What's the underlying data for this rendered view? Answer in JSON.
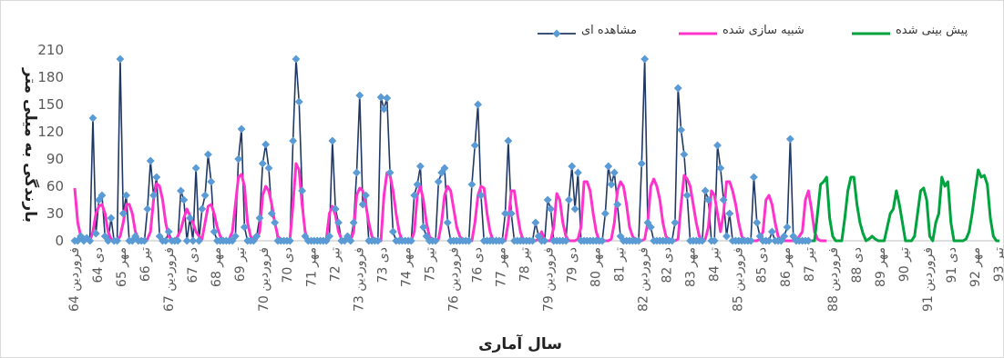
{
  "chart_data": {
    "type": "line",
    "xlabel": "سال آماری",
    "ylabel": "بارندگی به میلی متر",
    "ylim": [
      0,
      210
    ],
    "yticks": [
      0,
      30,
      60,
      90,
      120,
      150,
      180,
      210
    ],
    "grid": false,
    "legend_position": "top-right",
    "x_tick_labels": [
      "فروردین 64",
      "دی 64",
      "مهر 65",
      "تیر 66",
      "فروردین 67",
      "دی 67",
      "مهر 68",
      "تیر 69",
      "فروردین 70",
      "دی 70",
      "مهر 71",
      "تیر 72",
      "فروردین 73",
      "دی 73",
      "مهر 74",
      "تیر 75",
      "فروردین 76",
      "دی 76",
      "مهر 77",
      "تیر 78",
      "فروردین 79",
      "دی 79",
      "مهر 80",
      "تیر 81",
      "فروردین 82",
      "دی 82",
      "مهر 83",
      "تیر 84",
      "فروردین 85",
      "دی 85",
      "مهر 86",
      "تیر 87",
      "فروردین 88",
      "دی 88",
      "مهر 89",
      "تیر 90",
      "فروردین 91",
      "دی 91",
      "مهر 92",
      "تیر 93"
    ],
    "series": [
      {
        "name": "مشاهده ای",
        "color": "#1f3864",
        "marker_color": "#5b9bd5",
        "values": [
          0,
          0,
          5,
          0,
          3,
          0,
          135,
          8,
          45,
          50,
          5,
          0,
          25,
          0,
          0,
          200,
          30,
          50,
          0,
          0,
          5,
          0,
          0,
          0,
          35,
          88,
          50,
          70,
          5,
          0,
          0,
          10,
          0,
          0,
          0,
          55,
          45,
          0,
          25,
          0,
          80,
          0,
          35,
          50,
          95,
          65,
          10,
          0,
          0,
          0,
          0,
          0,
          0,
          5,
          90,
          123,
          15,
          0,
          0,
          0,
          5,
          25,
          85,
          106,
          80,
          30,
          20,
          0,
          0,
          0,
          0,
          0,
          110,
          200,
          153,
          55,
          5,
          0,
          0,
          0,
          0,
          0,
          0,
          0,
          5,
          110,
          35,
          20,
          0,
          0,
          5,
          0,
          20,
          75,
          160,
          40,
          50,
          0,
          0,
          0,
          0,
          158,
          145,
          157,
          75,
          10,
          0,
          0,
          0,
          0,
          0,
          0,
          50,
          62,
          82,
          15,
          5,
          0,
          0,
          0,
          65,
          75,
          80,
          20,
          0,
          0,
          0,
          0,
          0,
          0,
          0,
          62,
          105,
          150,
          50,
          0,
          0,
          0,
          0,
          0,
          0,
          0,
          30,
          110,
          30,
          0,
          0,
          0,
          0,
          0,
          0,
          0,
          20,
          5,
          0,
          0,
          45,
          35,
          0,
          0,
          0,
          0,
          0,
          45,
          82,
          35,
          75,
          0,
          0,
          0,
          0,
          0,
          0,
          0,
          0,
          30,
          82,
          62,
          75,
          40,
          5,
          0,
          0,
          0,
          0,
          0,
          0,
          85,
          200,
          20,
          15,
          0,
          0,
          0,
          0,
          0,
          0,
          0,
          20,
          168,
          122,
          95,
          50,
          0,
          0,
          0,
          0,
          0,
          55,
          45,
          0,
          0,
          105,
          80,
          45,
          5,
          30,
          0,
          0,
          0,
          0,
          0,
          0,
          0,
          70,
          20,
          5,
          0,
          0,
          0,
          10,
          0,
          0,
          0,
          5,
          15,
          112,
          5,
          0,
          0,
          0,
          0,
          0
        ]
      },
      {
        "name": "شبیه سازی شده",
        "color": "#ff33cc",
        "values": [
          58,
          20,
          5,
          2,
          0,
          0,
          10,
          30,
          38,
          40,
          30,
          10,
          2,
          0,
          0,
          5,
          20,
          40,
          40,
          30,
          10,
          2,
          0,
          0,
          2,
          10,
          45,
          63,
          60,
          45,
          20,
          5,
          0,
          0,
          5,
          12,
          25,
          35,
          28,
          20,
          10,
          5,
          2,
          20,
          38,
          40,
          30,
          15,
          5,
          0,
          0,
          2,
          10,
          40,
          70,
          73,
          60,
          20,
          5,
          0,
          2,
          10,
          50,
          60,
          55,
          40,
          20,
          5,
          0,
          0,
          0,
          2,
          40,
          85,
          78,
          40,
          10,
          0,
          0,
          0,
          0,
          0,
          0,
          2,
          30,
          38,
          28,
          10,
          2,
          0,
          0,
          0,
          10,
          50,
          58,
          55,
          40,
          20,
          5,
          0,
          0,
          0,
          50,
          75,
          72,
          55,
          30,
          10,
          0,
          0,
          0,
          0,
          10,
          50,
          60,
          45,
          20,
          5,
          0,
          0,
          2,
          20,
          50,
          60,
          55,
          35,
          15,
          5,
          0,
          0,
          0,
          0,
          20,
          50,
          60,
          58,
          30,
          10,
          0,
          0,
          0,
          0,
          0,
          20,
          55,
          55,
          30,
          10,
          0,
          0,
          0,
          0,
          0,
          2,
          10,
          0,
          0,
          0,
          15,
          52,
          45,
          20,
          5,
          0,
          0,
          0,
          2,
          15,
          65,
          65,
          55,
          30,
          10,
          0,
          0,
          0,
          0,
          2,
          20,
          55,
          65,
          60,
          40,
          15,
          5,
          0,
          0,
          0,
          2,
          20,
          60,
          68,
          60,
          45,
          20,
          5,
          0,
          0,
          0,
          2,
          40,
          72,
          68,
          60,
          40,
          20,
          5,
          0,
          2,
          15,
          55,
          50,
          30,
          10,
          30,
          65,
          65,
          55,
          40,
          20,
          5,
          0,
          0,
          0,
          0,
          0,
          2,
          10,
          45,
          50,
          40,
          20,
          5,
          0,
          0,
          0,
          0,
          0,
          0,
          5,
          10,
          45,
          55,
          35,
          10,
          2,
          0,
          0,
          0
        ]
      },
      {
        "name": "پیش بینی شده",
        "color": "#00a33e",
        "values": [
          0,
          0,
          30,
          62,
          65,
          70,
          25,
          5,
          0,
          0,
          0,
          25,
          55,
          70,
          70,
          40,
          20,
          8,
          0,
          2,
          5,
          2,
          0,
          0,
          0,
          15,
          30,
          35,
          55,
          40,
          20,
          0,
          0,
          0,
          5,
          30,
          55,
          58,
          45,
          5,
          0,
          20,
          30,
          70,
          60,
          65,
          20,
          0,
          0,
          0,
          0,
          2,
          10,
          30,
          55,
          78,
          70,
          72,
          62,
          25,
          5,
          0,
          0
        ]
      }
    ]
  }
}
